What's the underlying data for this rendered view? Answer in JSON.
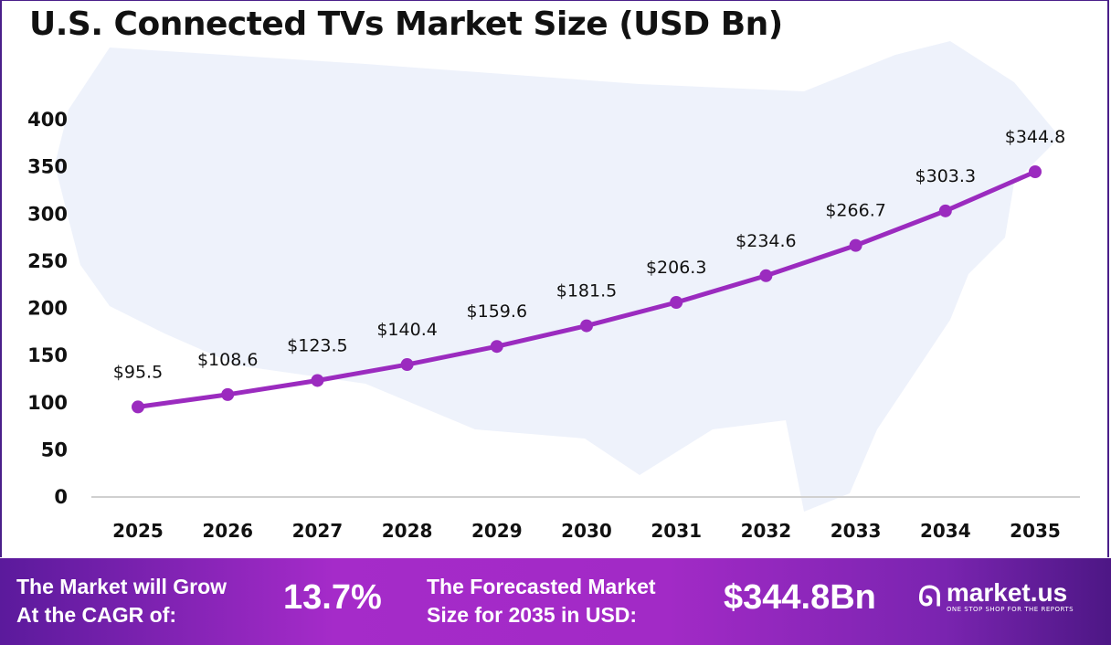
{
  "chart_data": {
    "type": "line",
    "title": "U.S. Connected TVs Market Size (USD Bn)",
    "categories": [
      "2025",
      "2026",
      "2027",
      "2028",
      "2029",
      "2030",
      "2031",
      "2032",
      "2033",
      "2034",
      "2035"
    ],
    "values": [
      95.5,
      108.6,
      123.5,
      140.4,
      159.6,
      181.5,
      206.3,
      234.6,
      266.7,
      303.3,
      344.8
    ],
    "data_labels": [
      "$95.5",
      "$108.6",
      "$123.5",
      "$140.4",
      "$159.6",
      "$181.5",
      "$206.3",
      "$234.6",
      "$266.7",
      "$303.3",
      "$344.8"
    ],
    "yticks": [
      "0",
      "50",
      "100",
      "150",
      "200",
      "250",
      "300",
      "350",
      "400"
    ],
    "ylim": [
      0,
      400
    ],
    "grid": false,
    "line_color": "#9b2bbf",
    "background": "U.S. map silhouette"
  },
  "footer": {
    "cagr_label_1": "The Market will Grow",
    "cagr_label_2": "At the CAGR of:",
    "cagr_value": "13.7%",
    "forecast_label_1": "The Forecasted Market",
    "forecast_label_2": "Size for 2035 in USD:",
    "forecast_value": "$344.8Bn",
    "logo_name": "market.us",
    "logo_tagline": "ONE STOP SHOP FOR THE REPORTS"
  }
}
